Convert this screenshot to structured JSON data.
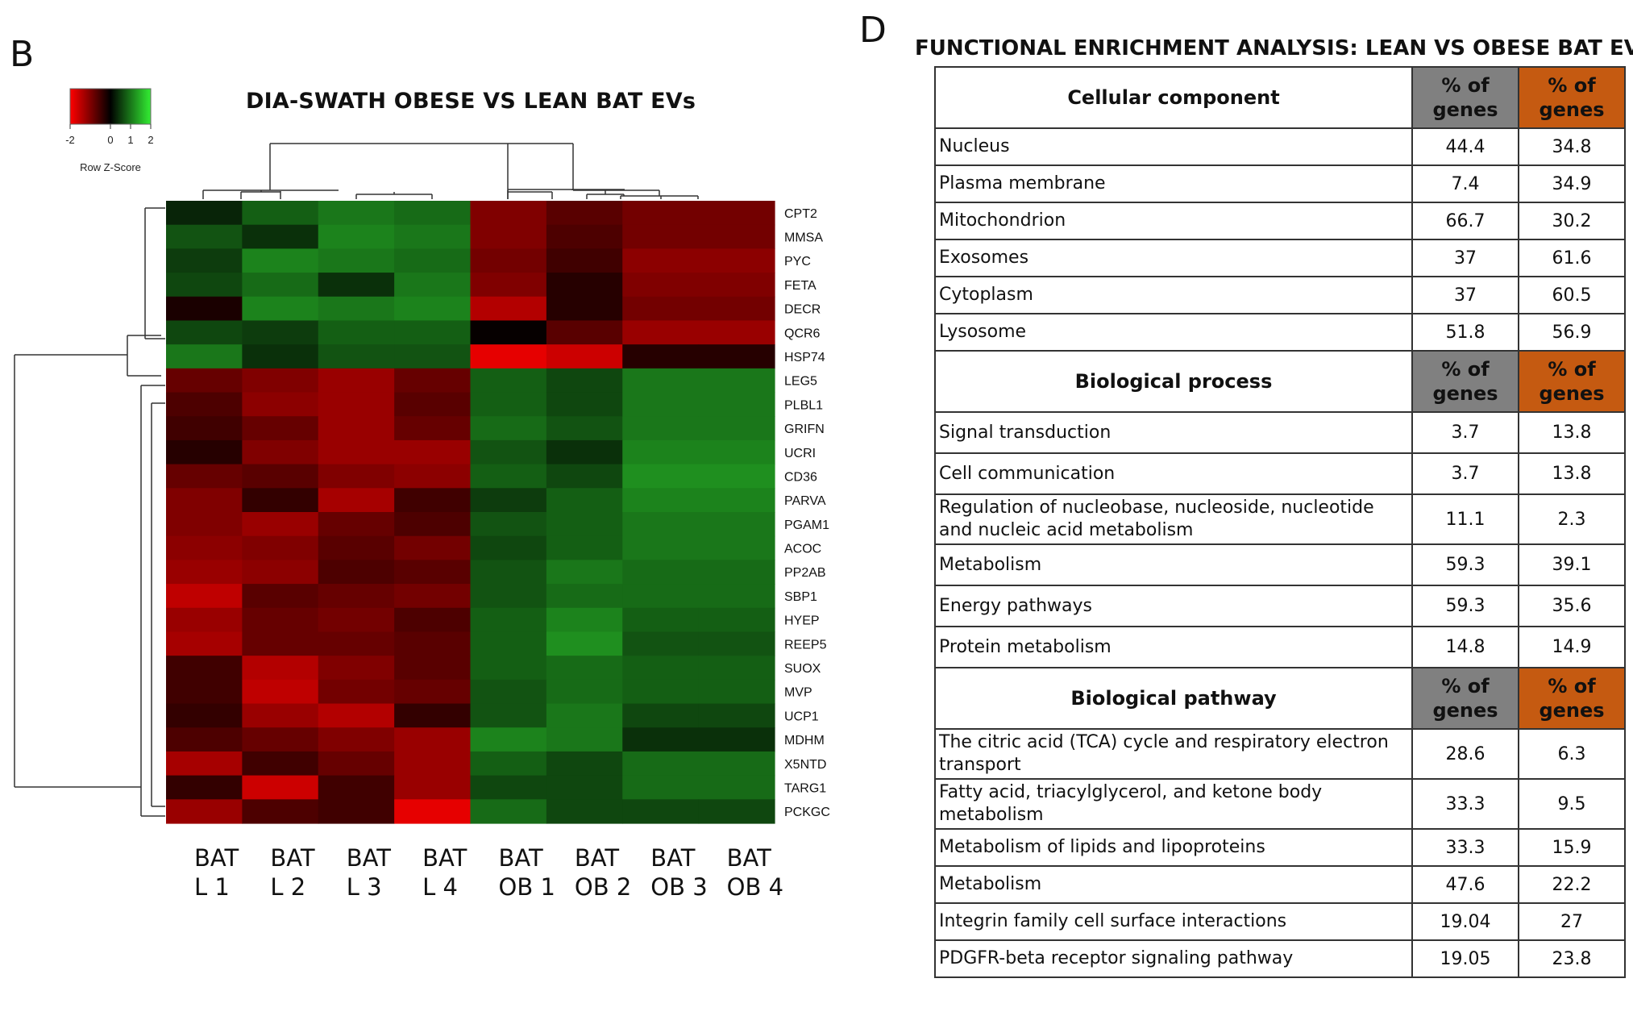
{
  "panel_b": {
    "letter": "B",
    "title": "DIA-SWATH OBESE VS LEAN BAT EVs",
    "color_key": {
      "label": "Row Z-Score",
      "ticks": [
        "-2",
        "0",
        "1",
        "2"
      ],
      "low_color": "#ff0000",
      "mid_color": "#000000",
      "high_color": "#33ee33"
    },
    "samples": [
      {
        "line1": "BAT",
        "line2": "L 1"
      },
      {
        "line1": "BAT",
        "line2": "L 2"
      },
      {
        "line1": "BAT",
        "line2": "L 3"
      },
      {
        "line1": "BAT",
        "line2": "L 4"
      },
      {
        "line1": "BAT",
        "line2": "OB 1"
      },
      {
        "line1": "BAT",
        "line2": "OB 2"
      },
      {
        "line1": "BAT",
        "line2": "OB 3"
      },
      {
        "line1": "BAT",
        "line2": "OB 4"
      }
    ]
  },
  "chart_data": {
    "type": "heatmap",
    "title": "DIA-SWATH OBESE VS LEAN BAT EVs",
    "color_scale_label": "Row Z-Score",
    "color_range": [
      -2,
      2
    ],
    "columns": [
      "BAT L 1",
      "BAT L 2",
      "BAT L 3",
      "BAT L 4",
      "BAT OB 1",
      "BAT OB 2",
      "BAT OB 3",
      "BAT OB 4"
    ],
    "rows": [
      "CPT2",
      "MMSA",
      "PYC",
      "FETA",
      "DECR",
      "QCR6",
      "HSP74",
      "LEG5",
      "PLBL1",
      "GRIFN",
      "UCRI",
      "CD36",
      "PARVA",
      "PGAM1",
      "ACOC",
      "PP2AB",
      "SBP1",
      "HYEP",
      "REEP5",
      "SUOX",
      "MVP",
      "UCP1",
      "MDHM",
      "X5NTD",
      "TARG1",
      "PCKGC"
    ],
    "values": [
      [
        0.3,
        0.8,
        1.0,
        0.9,
        -1.0,
        -0.7,
        -0.9,
        -0.9
      ],
      [
        0.7,
        0.4,
        1.1,
        1.0,
        -1.0,
        -0.6,
        -0.9,
        -0.9
      ],
      [
        0.5,
        1.1,
        1.0,
        0.9,
        -0.9,
        -0.5,
        -1.1,
        -1.1
      ],
      [
        0.6,
        0.9,
        0.4,
        1.0,
        -1.0,
        -0.3,
        -1.0,
        -1.0
      ],
      [
        -0.2,
        1.1,
        1.0,
        1.1,
        -1.4,
        -0.3,
        -0.9,
        -0.9
      ],
      [
        0.6,
        0.5,
        0.8,
        0.8,
        -0.05,
        -0.7,
        -1.2,
        -1.2
      ],
      [
        1.0,
        0.4,
        0.7,
        0.7,
        -1.8,
        -1.6,
        -0.3,
        -0.3
      ],
      [
        -0.8,
        -1.0,
        -1.2,
        -0.8,
        0.8,
        0.6,
        1.0,
        1.0
      ],
      [
        -0.6,
        -1.1,
        -1.2,
        -0.7,
        0.8,
        0.6,
        1.0,
        1.0
      ],
      [
        -0.5,
        -0.8,
        -1.2,
        -0.8,
        0.9,
        0.7,
        1.0,
        1.0
      ],
      [
        -0.3,
        -1.0,
        -1.2,
        -1.2,
        0.7,
        0.4,
        1.1,
        1.1
      ],
      [
        -0.8,
        -0.7,
        -1.0,
        -1.1,
        0.8,
        0.6,
        1.2,
        1.2
      ],
      [
        -1.0,
        -0.4,
        -1.3,
        -0.5,
        0.5,
        0.8,
        1.1,
        1.1
      ],
      [
        -1.0,
        -1.2,
        -0.8,
        -0.6,
        0.7,
        0.8,
        1.0,
        1.0
      ],
      [
        -1.1,
        -1.0,
        -0.7,
        -0.9,
        0.6,
        0.8,
        1.0,
        1.0
      ],
      [
        -1.2,
        -1.1,
        -0.6,
        -0.7,
        0.7,
        1.0,
        0.9,
        0.9
      ],
      [
        -1.5,
        -0.7,
        -0.8,
        -0.9,
        0.7,
        0.9,
        0.9,
        0.9
      ],
      [
        -1.2,
        -0.8,
        -0.9,
        -0.6,
        0.8,
        1.1,
        0.8,
        0.8
      ],
      [
        -1.3,
        -0.8,
        -0.8,
        -0.7,
        0.8,
        1.2,
        0.7,
        0.7
      ],
      [
        -0.5,
        -1.4,
        -1.0,
        -0.7,
        0.8,
        0.9,
        0.8,
        0.8
      ],
      [
        -0.5,
        -1.5,
        -0.9,
        -0.8,
        0.7,
        0.9,
        0.8,
        0.8
      ],
      [
        -0.4,
        -1.2,
        -1.4,
        -0.4,
        0.7,
        1.0,
        0.6,
        0.6
      ],
      [
        -0.6,
        -0.8,
        -1.0,
        -1.2,
        1.1,
        1.0,
        0.4,
        0.4
      ],
      [
        -1.3,
        -0.5,
        -0.8,
        -1.2,
        0.8,
        0.6,
        0.9,
        0.9
      ],
      [
        -0.4,
        -1.6,
        -0.5,
        -1.2,
        0.6,
        0.6,
        0.9,
        0.9
      ],
      [
        -1.2,
        -0.6,
        -0.5,
        -1.8,
        0.9,
        0.6,
        0.6,
        0.6
      ]
    ]
  },
  "panel_d": {
    "letter": "D",
    "title": "FUNCTIONAL ENRICHMENT ANALYSIS: LEAN VS OBESE BAT EVs",
    "lean_color": "#808080",
    "obese_color": "#c55a11",
    "sections": [
      {
        "header": "Cellular component",
        "col_lean": "% of genes",
        "col_obese": "% of genes",
        "rows": [
          {
            "term": "Nucleus",
            "lean": "44.4",
            "obese": "34.8"
          },
          {
            "term": "Plasma membrane",
            "lean": "7.4",
            "obese": "34.9"
          },
          {
            "term": "Mitochondrion",
            "lean": "66.7",
            "obese": "30.2"
          },
          {
            "term": "Exosomes",
            "lean": "37",
            "obese": "61.6"
          },
          {
            "term": "Cytoplasm",
            "lean": "37",
            "obese": "60.5"
          },
          {
            "term": "Lysosome",
            "lean": "51.8",
            "obese": "56.9"
          }
        ]
      },
      {
        "header": "Biological process",
        "col_lean": "% of genes",
        "col_obese": "% of genes",
        "rows": [
          {
            "term": "Signal transduction",
            "lean": "3.7",
            "obese": "13.8"
          },
          {
            "term": "Cell communication",
            "lean": "3.7",
            "obese": "13.8"
          },
          {
            "term": "Regulation of nucleobase, nucleoside, nucleotide and nucleic acid metabolism",
            "lean": "11.1",
            "obese": "2.3"
          },
          {
            "term": "Metabolism",
            "lean": "59.3",
            "obese": "39.1"
          },
          {
            "term": "Energy pathways",
            "lean": "59.3",
            "obese": "35.6"
          },
          {
            "term": "Protein metabolism",
            "lean": "14.8",
            "obese": "14.9"
          }
        ]
      },
      {
        "header": "Biological pathway",
        "col_lean": "% of genes",
        "col_obese": "% of genes",
        "rows": [
          {
            "term": "The citric acid (TCA) cycle and respiratory electron transport",
            "lean": "28.6",
            "obese": "6.3"
          },
          {
            "term": "Fatty acid, triacylglycerol, and ketone body metabolism",
            "lean": "33.3",
            "obese": "9.5"
          },
          {
            "term": "Metabolism of lipids and lipoproteins",
            "lean": "33.3",
            "obese": "15.9"
          },
          {
            "term": "Metabolism",
            "lean": "47.6",
            "obese": "22.2"
          },
          {
            "term": "Integrin family cell surface interactions",
            "lean": "19.04",
            "obese": "27"
          },
          {
            "term": "PDGFR-beta receptor signaling pathway",
            "lean": "19.05",
            "obese": "23.8"
          }
        ]
      }
    ]
  }
}
